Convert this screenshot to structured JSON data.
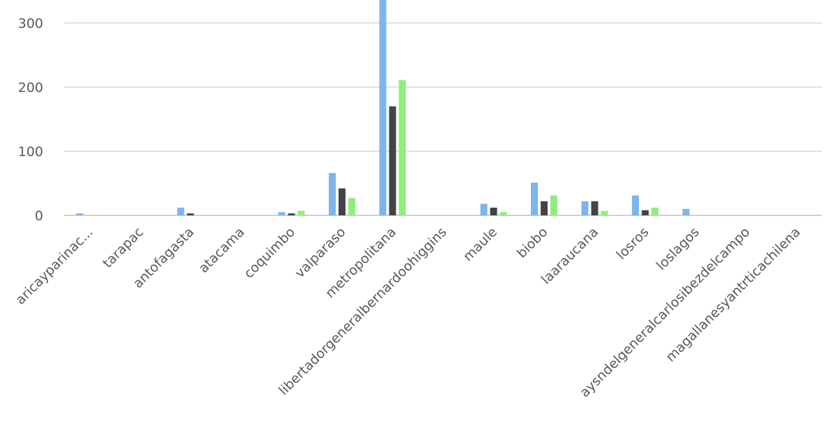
{
  "chart_data": {
    "type": "bar",
    "categories": [
      "aricayparinac...",
      "tarapac",
      "antofagasta",
      "atacama",
      "coquimbo",
      "valparaso",
      "metropolitana",
      "libertadorgeneralbernardoohiggins",
      "maule",
      "biobo",
      "laaraucana",
      "losros",
      "loslagos",
      "aysndelgeneralcarlosibezdelcampo",
      "magallanesyantrticachilena"
    ],
    "series": [
      {
        "color": "#7cb5ec",
        "values": [
          3,
          0,
          12,
          0,
          5,
          66,
          340,
          0,
          18,
          51,
          22,
          31,
          10,
          0,
          0
        ]
      },
      {
        "color": "#434348",
        "values": [
          0,
          0,
          3,
          0,
          3,
          42,
          170,
          0,
          12,
          22,
          22,
          8,
          0,
          0,
          0
        ]
      },
      {
        "color": "#90ed7d",
        "values": [
          0,
          0,
          0,
          0,
          7,
          27,
          211,
          0,
          5,
          31,
          7,
          12,
          0,
          0,
          0
        ]
      }
    ],
    "yticks": [
      "0",
      "100",
      "200",
      "300"
    ],
    "ytick_values": [
      0,
      100,
      200,
      300
    ],
    "ylim": [
      0,
      335
    ],
    "grid": true,
    "legend": "none"
  }
}
